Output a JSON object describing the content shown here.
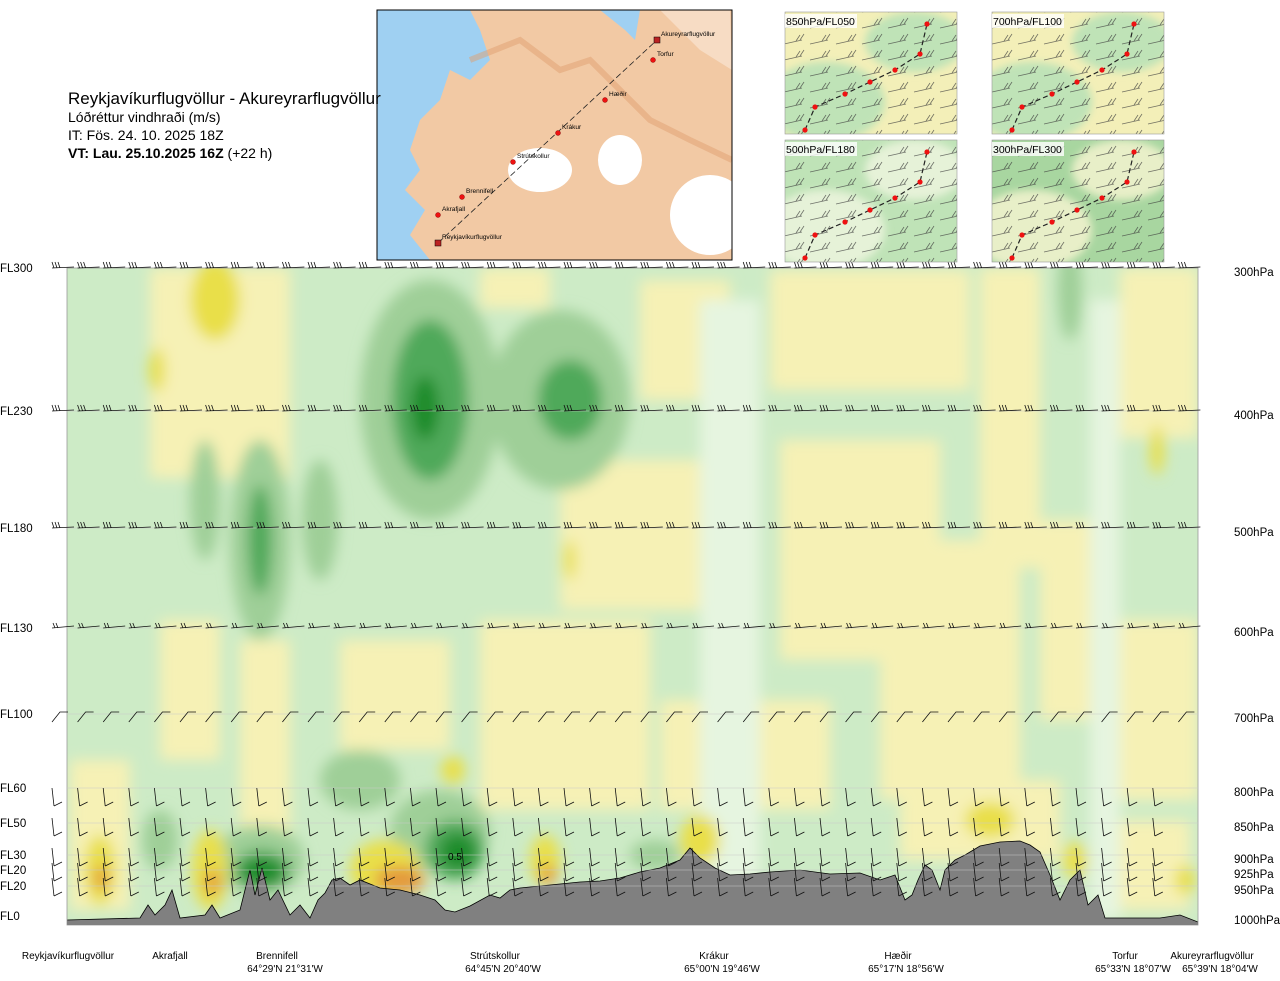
{
  "header": {
    "title": "Reykjavíkurflugvöllur - Akureyrarflugvöllur",
    "subtitle": "Lóðréttur vindhraði (m/s)",
    "init_time": "IT: Fös. 24. 10. 2025 18Z",
    "valid_time_bold": "VT: Lau. 25.10.2025 16Z",
    "valid_time_offset": "(+22 h)"
  },
  "route_map": {
    "waypoints": [
      "Akureyrarflugvöllur",
      "Torfur",
      "Hæðir",
      "Krákur",
      "Strútskollur",
      "Brennifell",
      "Akrafjall",
      "Reykjavíkurflugvöllur"
    ]
  },
  "wind_panels": [
    {
      "label": "850hPa/FL050"
    },
    {
      "label": "700hPa/FL100"
    },
    {
      "label": "500hPa/FL180"
    },
    {
      "label": "300hPa/FL300"
    }
  ],
  "colors": {
    "strong_green": "#1e8c2a",
    "mid_green": "#4fa95a",
    "soft_green": "#9fcf98",
    "pale_green": "#cdebc6",
    "very_pale_green": "#e6f5e0",
    "pale_yellow": "#f6f1b5",
    "yellow": "#e9df4a",
    "orange": "#e49a3c",
    "terrain": "#808080",
    "land": "#f2c9a4",
    "water": "#9fd0f2"
  },
  "chart_data": {
    "type": "heatmap",
    "variable": "Lóðréttur vindhraði (m/s)",
    "left_axis_labels": [
      "FL300",
      "FL230",
      "FL180",
      "FL130",
      "FL100",
      "FL60",
      "FL50",
      "FL30",
      "FL20",
      "FL20",
      "FL0"
    ],
    "right_axis_labels": [
      "300hPa",
      "400hPa",
      "500hPa",
      "600hPa",
      "700hPa",
      "800hPa",
      "850hPa",
      "900hPa",
      "925hPa",
      "950hPa",
      "1000hPa"
    ],
    "pressure_levels_hpa": [
      300,
      400,
      500,
      600,
      700,
      800,
      850,
      900,
      925,
      950,
      1000
    ],
    "x_labels": [
      {
        "name": "Reykjavíkurflugvöllur",
        "coord": ""
      },
      {
        "name": "Akrafjall",
        "coord": ""
      },
      {
        "name": "Brennifell",
        "coord": "64°29'N 21°31'W"
      },
      {
        "name": "Strútskollur",
        "coord": "64°45'N 20°40'W"
      },
      {
        "name": "Krákur",
        "coord": "65°00'N 19°46'W"
      },
      {
        "name": "Hæðir",
        "coord": "65°17'N 18°56'W"
      },
      {
        "name": "Torfur",
        "coord": "65°33'N 18°07'W"
      },
      {
        "name": "Akureyrarflugvöllur",
        "coord": "65°39'N 18°04'W"
      }
    ],
    "annotations": [
      "0.5"
    ]
  }
}
